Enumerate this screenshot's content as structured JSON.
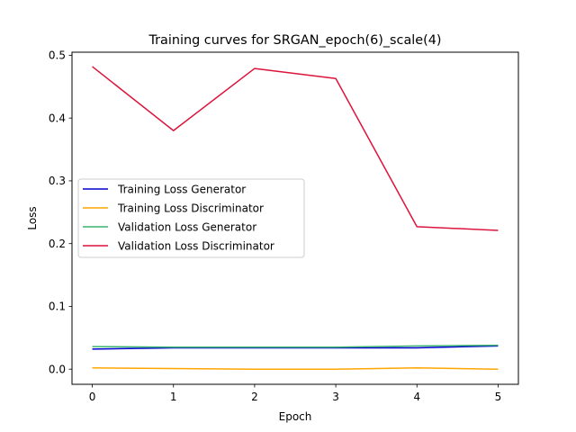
{
  "chart_data": {
    "type": "line",
    "title": "Training curves for SRGAN_epoch(6)_scale(4)",
    "xlabel": "Epoch",
    "ylabel": "Loss",
    "xlim": [
      -0.25,
      5.25
    ],
    "ylim": [
      -0.0241,
      0.5049
    ],
    "x_ticks": [
      "0",
      "1",
      "2",
      "3",
      "4",
      "5"
    ],
    "y_ticks": [
      "0.0",
      "0.1",
      "0.2",
      "0.3",
      "0.4",
      "0.5"
    ],
    "grid": false,
    "legend_position": "center-left",
    "x": [
      0,
      1,
      2,
      3,
      4,
      5
    ],
    "series": [
      {
        "name": "Training Loss Generator",
        "color": "#0000cd",
        "values": [
          0.032,
          0.034,
          0.034,
          0.034,
          0.034,
          0.037
        ]
      },
      {
        "name": "Training Loss Discriminator",
        "color": "#ffa500",
        "values": [
          0.002,
          0.001,
          0.0,
          0.0,
          0.002,
          0.0
        ]
      },
      {
        "name": "Validation Loss Generator",
        "color": "#3cb371",
        "values": [
          0.036,
          0.035,
          0.035,
          0.035,
          0.037,
          0.038
        ]
      },
      {
        "name": "Validation Loss Discriminator",
        "color": "#dc143c",
        "values": [
          0.482,
          0.38,
          0.479,
          0.463,
          0.227,
          0.221
        ]
      }
    ]
  }
}
